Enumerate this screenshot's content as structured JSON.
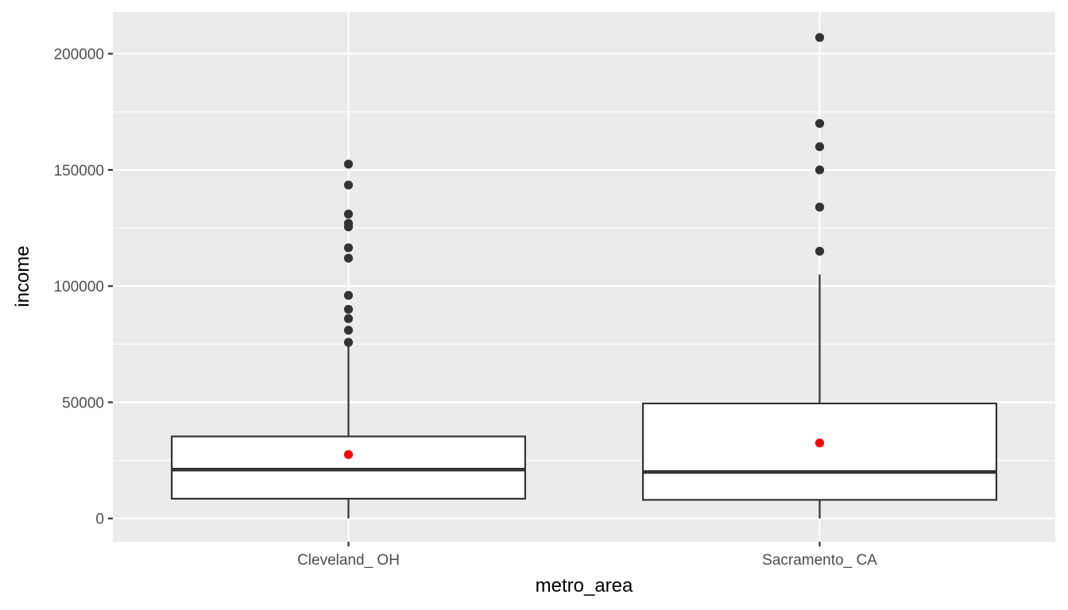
{
  "chart_data": {
    "type": "box",
    "xlabel": "metro_area",
    "ylabel": "income",
    "ylim": [
      -10000,
      218000
    ],
    "y_ticks": [
      0,
      50000,
      100000,
      150000,
      200000
    ],
    "y_tick_labels": [
      "0",
      "50000",
      "100000",
      "150000",
      "200000"
    ],
    "grid": true,
    "categories": [
      "Cleveland_ OH",
      "Sacramento_ CA"
    ],
    "boxes": [
      {
        "category": "Cleveland_ OH",
        "whisker_low": 0,
        "q1": 8500,
        "median": 21000,
        "q3": 35300,
        "whisker_high": 74000,
        "mean": 27500,
        "outliers": [
          75800,
          81000,
          86000,
          90000,
          96000,
          112000,
          116500,
          125500,
          127000,
          131000,
          143500,
          152500
        ]
      },
      {
        "category": "Sacramento_ CA",
        "whisker_low": 0,
        "q1": 8000,
        "median": 20000,
        "q3": 49500,
        "whisker_high": 105000,
        "mean": 32500,
        "outliers": [
          115000,
          134000,
          150000,
          160000,
          170000,
          207000
        ]
      }
    ],
    "colors": {
      "panel": "#ebebeb",
      "box_line": "#333333",
      "outlier": "#333333",
      "mean": "#ff0000"
    }
  }
}
